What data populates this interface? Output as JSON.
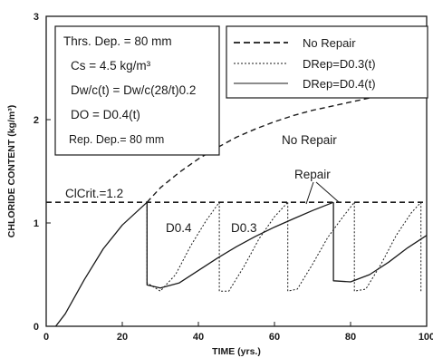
{
  "chart_data": {
    "type": "line",
    "xlabel": "TIME (yrs.)",
    "ylabel": "CHLORIDE CONTENT (kg/m³)",
    "xlim": [
      0,
      100
    ],
    "ylim": [
      0,
      3
    ],
    "x_ticks": [
      "0",
      "20",
      "40",
      "60",
      "80",
      "100"
    ],
    "y_ticks": [
      "0",
      "1",
      "2",
      "3"
    ],
    "grid": false,
    "legend_position": "top-right",
    "info_box": {
      "lines": [
        "Thrs. Dep. = 80 mm",
        "Cs = 4.5 kg/m³",
        "Dw/c(t) = Dw/c(28/t)0.2",
        "DO = D0.4(t)",
        "Rep. Dep.= 80 mm"
      ]
    },
    "legend": {
      "entries": [
        {
          "label": "No Repair",
          "style": "dashed"
        },
        {
          "label": "DRep=D0.3(t)",
          "style": "dotted"
        },
        {
          "label": "DRep=D0.4(t)",
          "style": "solid"
        }
      ]
    },
    "annotations": {
      "threshold": "ClCrit.=1.2",
      "no_repair": "No Repair",
      "repair": "Repair",
      "d04": "D0.4",
      "d03": "D0.3"
    },
    "threshold": 1.2,
    "series": [
      {
        "name": "No Repair",
        "style": "dashed",
        "x": [
          26.5,
          30,
          35,
          40,
          45,
          50,
          55,
          60,
          65,
          70,
          75,
          80,
          85,
          90,
          95,
          100
        ],
        "y": [
          1.2,
          1.34,
          1.49,
          1.62,
          1.73,
          1.83,
          1.91,
          1.98,
          2.04,
          2.09,
          2.13,
          2.17,
          2.21,
          2.24,
          2.27,
          2.3
        ]
      },
      {
        "name": "DRep=D0.3(t)",
        "style": "dotted",
        "segments": [
          {
            "x": [
              26.5,
              26.5,
              30,
              34,
              38,
              42,
              45.5
            ],
            "y": [
              1.2,
              0.42,
              0.34,
              0.5,
              0.78,
              1.02,
              1.2
            ]
          },
          {
            "x": [
              45.5,
              45.5,
              48,
              52,
              56,
              60,
              63.5
            ],
            "y": [
              1.2,
              0.34,
              0.34,
              0.58,
              0.85,
              1.06,
              1.2
            ]
          },
          {
            "x": [
              63.5,
              63.5,
              66,
              70,
              74,
              78,
              81
            ],
            "y": [
              1.2,
              0.34,
              0.36,
              0.6,
              0.86,
              1.06,
              1.2
            ]
          },
          {
            "x": [
              81,
              81,
              84,
              88,
              92,
              96,
              98.5
            ],
            "y": [
              1.2,
              0.34,
              0.36,
              0.6,
              0.88,
              1.1,
              1.2
            ]
          },
          {
            "x": [
              98.5,
              98.5
            ],
            "y": [
              1.2,
              0.34
            ]
          }
        ]
      },
      {
        "name": "DRep=D0.4(t)",
        "style": "solid",
        "segments": [
          {
            "x": [
              2.5,
              5,
              10,
              15,
              20,
              26.5
            ],
            "y": [
              0,
              0.12,
              0.45,
              0.75,
              0.98,
              1.2
            ]
          },
          {
            "x": [
              26.5,
              26.5,
              30,
              35,
              40,
              45,
              50,
              55,
              60,
              65,
              70,
              75.5
            ],
            "y": [
              1.2,
              0.4,
              0.37,
              0.42,
              0.54,
              0.66,
              0.77,
              0.87,
              0.96,
              1.04,
              1.12,
              1.2
            ]
          },
          {
            "x": [
              75.5,
              75.5,
              80,
              85,
              90,
              95,
              100
            ],
            "y": [
              1.2,
              0.44,
              0.43,
              0.5,
              0.62,
              0.76,
              0.88
            ]
          }
        ]
      }
    ]
  }
}
